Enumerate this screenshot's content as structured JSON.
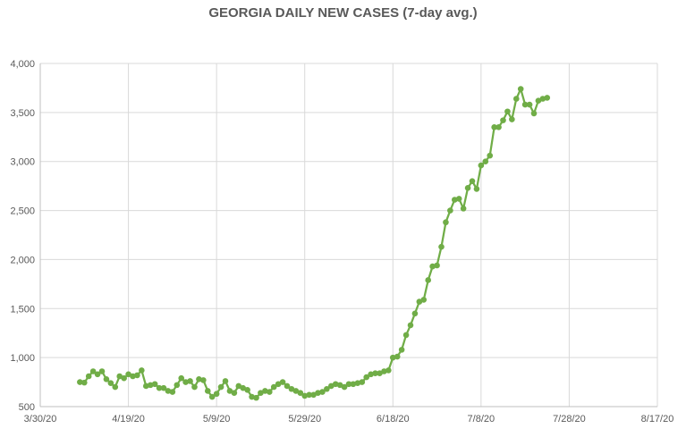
{
  "chart_data": {
    "type": "line",
    "title": "GEORGIA DAILY NEW CASES (7-day avg.)",
    "xlabel": "",
    "ylabel": "",
    "grid": true,
    "ylim": [
      500,
      4000
    ],
    "yticks": [
      "4,000",
      "3,500",
      "3,000",
      "2,500",
      "2,000",
      "1,500",
      "1,000",
      "500"
    ],
    "xlim": [
      "2020-03-30",
      "2020-08-17"
    ],
    "xticks": [
      "3/30/20",
      "4/19/20",
      "5/9/20",
      "5/29/20",
      "6/18/20",
      "7/8/20",
      "7/28/20",
      "8/17/20"
    ],
    "colors": {
      "series": "#70ad47",
      "grid": "#d9d9d9",
      "axis": "#bfbfbf"
    },
    "series": [
      {
        "name": "",
        "x": [
          "2020-04-08",
          "2020-04-09",
          "2020-04-10",
          "2020-04-11",
          "2020-04-12",
          "2020-04-13",
          "2020-04-14",
          "2020-04-15",
          "2020-04-16",
          "2020-04-17",
          "2020-04-18",
          "2020-04-19",
          "2020-04-20",
          "2020-04-21",
          "2020-04-22",
          "2020-04-23",
          "2020-04-24",
          "2020-04-25",
          "2020-04-26",
          "2020-04-27",
          "2020-04-28",
          "2020-04-29",
          "2020-04-30",
          "2020-05-01",
          "2020-05-02",
          "2020-05-03",
          "2020-05-04",
          "2020-05-05",
          "2020-05-06",
          "2020-05-07",
          "2020-05-08",
          "2020-05-09",
          "2020-05-10",
          "2020-05-11",
          "2020-05-12",
          "2020-05-13",
          "2020-05-14",
          "2020-05-15",
          "2020-05-16",
          "2020-05-17",
          "2020-05-18",
          "2020-05-19",
          "2020-05-20",
          "2020-05-21",
          "2020-05-22",
          "2020-05-23",
          "2020-05-24",
          "2020-05-25",
          "2020-05-26",
          "2020-05-27",
          "2020-05-28",
          "2020-05-29",
          "2020-05-30",
          "2020-05-31",
          "2020-06-01",
          "2020-06-02",
          "2020-06-03",
          "2020-06-04",
          "2020-06-05",
          "2020-06-06",
          "2020-06-07",
          "2020-06-08",
          "2020-06-09",
          "2020-06-10",
          "2020-06-11",
          "2020-06-12",
          "2020-06-13",
          "2020-06-14",
          "2020-06-15",
          "2020-06-16",
          "2020-06-17",
          "2020-06-18",
          "2020-06-19",
          "2020-06-20",
          "2020-06-21",
          "2020-06-22",
          "2020-06-23",
          "2020-06-24",
          "2020-06-25",
          "2020-06-26",
          "2020-06-27",
          "2020-06-28",
          "2020-06-29",
          "2020-06-30",
          "2020-07-01",
          "2020-07-02",
          "2020-07-03",
          "2020-07-04",
          "2020-07-05",
          "2020-07-06",
          "2020-07-07",
          "2020-07-08",
          "2020-07-09",
          "2020-07-10",
          "2020-07-11",
          "2020-07-12",
          "2020-07-13",
          "2020-07-14",
          "2020-07-15",
          "2020-07-16",
          "2020-07-17",
          "2020-07-18",
          "2020-07-19",
          "2020-07-20",
          "2020-07-21",
          "2020-07-22",
          "2020-07-23"
        ],
        "values": [
          750,
          745,
          810,
          860,
          830,
          860,
          780,
          740,
          700,
          810,
          790,
          830,
          810,
          820,
          870,
          710,
          720,
          730,
          690,
          690,
          660,
          650,
          720,
          790,
          750,
          760,
          700,
          780,
          770,
          660,
          600,
          630,
          700,
          760,
          660,
          640,
          710,
          690,
          670,
          600,
          590,
          640,
          660,
          650,
          700,
          730,
          750,
          710,
          680,
          660,
          640,
          610,
          620,
          620,
          640,
          650,
          680,
          710,
          730,
          720,
          700,
          730,
          730,
          740,
          750,
          800,
          830,
          840,
          840,
          860,
          870,
          1000,
          1010,
          1080,
          1230,
          1330,
          1450,
          1570,
          1590,
          1790,
          1930,
          1940,
          2130,
          2380,
          2500,
          2610,
          2620,
          2520,
          2730,
          2800,
          2720,
          2960,
          3000,
          3060,
          3350,
          3350,
          3420,
          3510,
          3430,
          3640,
          3740,
          3580,
          3580,
          3490,
          3620,
          3640,
          3650
        ]
      }
    ]
  }
}
